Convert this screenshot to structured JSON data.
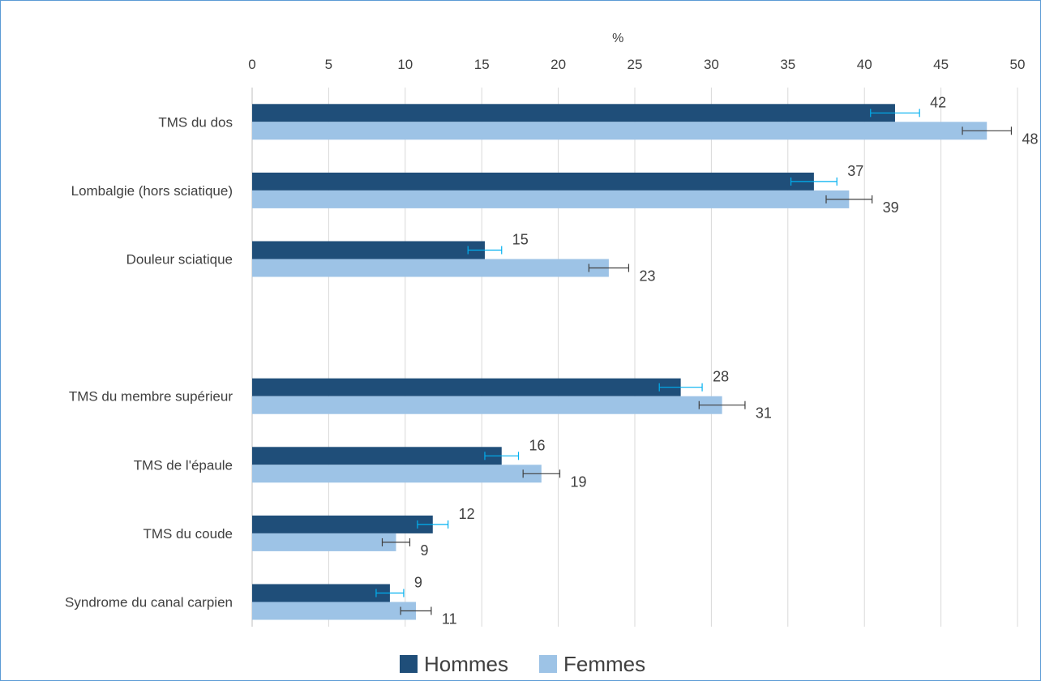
{
  "chart_data": {
    "type": "bar",
    "orientation": "horizontal",
    "title": "",
    "xlabel": "%",
    "ylabel": "",
    "xlim": [
      0,
      50
    ],
    "x_ticks": [
      0,
      5,
      10,
      15,
      20,
      25,
      30,
      35,
      40,
      45,
      50
    ],
    "grid": "vertical",
    "legend_position": "bottom",
    "colors": {
      "Hommes": "#1f4e79",
      "Femmes": "#9dc3e6",
      "err_hommes": "#00b0f0",
      "err_femmes": "#404040"
    },
    "categories": [
      "TMS du dos",
      "Lombalgie (hors sciatique)",
      "Douleur sciatique",
      "",
      "TMS du membre supérieur",
      "TMS de l'épaule",
      "TMS du coude",
      "Syndrome du canal carpien"
    ],
    "series": [
      {
        "name": "Hommes",
        "values": [
          42,
          36.7,
          15.2,
          null,
          28,
          16.3,
          11.8,
          9
        ],
        "labels": [
          "42",
          "37",
          "15",
          "",
          "28",
          "16",
          "12",
          "9"
        ],
        "error": [
          1.6,
          1.5,
          1.1,
          null,
          1.4,
          1.1,
          1.0,
          0.9
        ]
      },
      {
        "name": "Femmes",
        "values": [
          48,
          39,
          23.3,
          null,
          30.7,
          18.9,
          9.4,
          10.7
        ],
        "labels": [
          "48",
          "39",
          "23",
          "",
          "31",
          "19",
          "9",
          "11"
        ],
        "error": [
          1.6,
          1.5,
          1.3,
          null,
          1.5,
          1.2,
          0.9,
          1.0
        ]
      }
    ]
  }
}
